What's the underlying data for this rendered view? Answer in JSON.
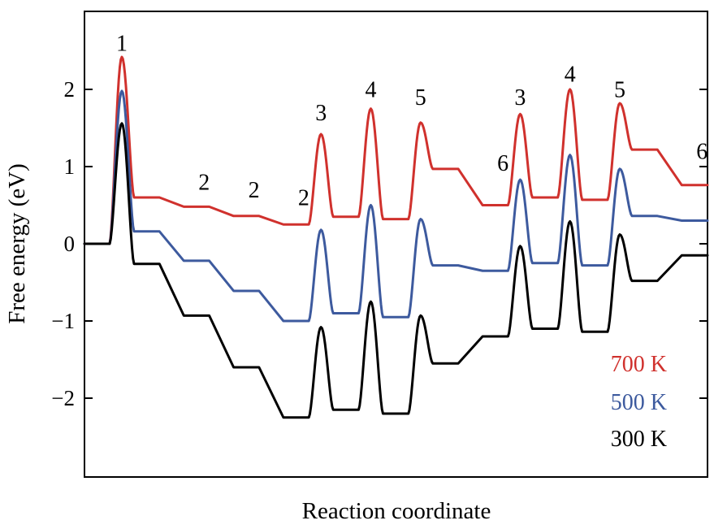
{
  "chart_data": {
    "type": "line",
    "title": "",
    "xlabel": "Reaction coordinate",
    "ylabel": "Free energy (eV)",
    "ylim": [
      -3.0,
      3.0
    ],
    "yticks": [
      {
        "value": 2,
        "label": "2"
      },
      {
        "value": 1,
        "label": "1"
      },
      {
        "value": 0,
        "label": "0"
      },
      {
        "value": -1,
        "label": "−1"
      },
      {
        "value": -2,
        "label": "−2"
      }
    ],
    "xticks_shown": false,
    "grid": false,
    "legend_position": "bottom-right",
    "step_labels": [
      {
        "label": "1",
        "step": 1,
        "energy": 2.5
      },
      {
        "label": "2",
        "step": 2,
        "energy": 0.7
      },
      {
        "label": "2",
        "step": 3,
        "energy": 0.6
      },
      {
        "label": "2",
        "step": 4,
        "energy": 0.5
      },
      {
        "label": "3",
        "step": 5,
        "energy": 1.6
      },
      {
        "label": "4",
        "step": 6,
        "energy": 1.9
      },
      {
        "label": "5",
        "step": 7,
        "energy": 1.8
      },
      {
        "label": "6",
        "step": 8,
        "energy": 0.95
      },
      {
        "label": "3",
        "step": 9,
        "energy": 1.8
      },
      {
        "label": "4",
        "step": 10,
        "energy": 2.1
      },
      {
        "label": "5",
        "step": 11,
        "energy": 1.9
      },
      {
        "label": "6",
        "step": 12,
        "energy": 1.1
      }
    ],
    "series": [
      {
        "name": "700 K",
        "color": "#d0312d",
        "levels": [
          0.0,
          0.6,
          0.48,
          0.36,
          0.25,
          0.35,
          0.32,
          0.97,
          0.5,
          0.6,
          0.57,
          1.22,
          0.76
        ],
        "barriers": [
          2.42,
          null,
          null,
          null,
          1.42,
          1.75,
          1.57,
          null,
          1.68,
          2.0,
          1.82,
          null
        ]
      },
      {
        "name": "500 K",
        "color": "#3d5a9e",
        "levels": [
          0.0,
          0.16,
          -0.22,
          -0.61,
          -1.0,
          -0.9,
          -0.95,
          -0.28,
          -0.35,
          -0.25,
          -0.28,
          0.36,
          0.3
        ],
        "barriers": [
          1.98,
          null,
          null,
          null,
          0.18,
          0.5,
          0.32,
          null,
          0.83,
          1.15,
          0.97,
          null
        ]
      },
      {
        "name": "300 K",
        "color": "#000000",
        "levels": [
          0.0,
          -0.26,
          -0.93,
          -1.6,
          -2.25,
          -2.15,
          -2.2,
          -1.55,
          -1.2,
          -1.1,
          -1.14,
          -0.48,
          -0.15
        ],
        "barriers": [
          1.56,
          null,
          null,
          null,
          -1.08,
          -0.75,
          -0.93,
          null,
          -0.03,
          0.29,
          0.12,
          null
        ]
      }
    ]
  }
}
